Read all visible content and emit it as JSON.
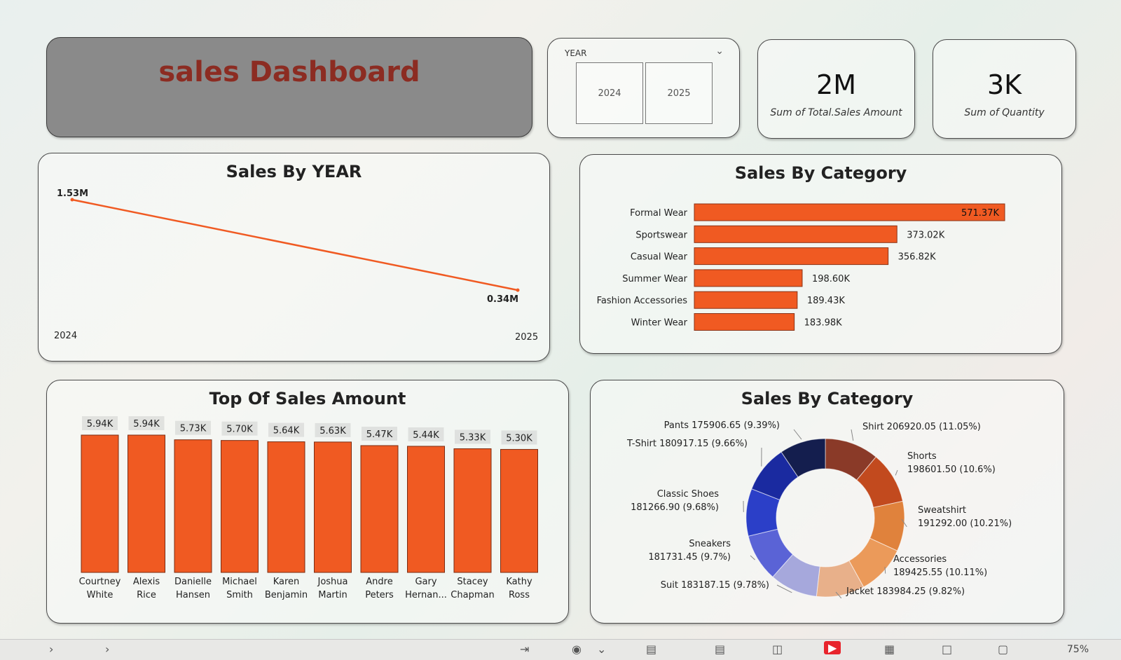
{
  "header": {
    "title": "sales Dashboard"
  },
  "slicer": {
    "label": "YEAR",
    "options": [
      "2024",
      "2025"
    ]
  },
  "kpis": [
    {
      "value": "2M",
      "label": "Sum of Total.Sales Amount"
    },
    {
      "value": "3K",
      "label": "Sum of Quantity"
    }
  ],
  "status": {
    "zoom": "75%"
  },
  "icons": {
    "dropdown": "chevron-down-icon",
    "taskbar": [
      "chevron-right-icon",
      "chevron-right-icon",
      "exit-icon",
      "eye-icon",
      "chevron-down-icon",
      "layout-icon",
      "page-icon",
      "columns-icon",
      "play-icon",
      "grid-icon",
      "fit-icon",
      "full-icon"
    ]
  },
  "colors": {
    "bar": "#f05a22",
    "bar_top": "#b9431a",
    "title_text": "#8c2c22",
    "title_bg": "#8a8a8a"
  },
  "chart_data": [
    {
      "type": "line",
      "title": "Sales By YEAR",
      "x": [
        "2024",
        "2025"
      ],
      "series": [
        {
          "values": [
            1.53,
            0.34
          ]
        }
      ],
      "data_labels": [
        "1.53M",
        "0.34M"
      ]
    },
    {
      "type": "bar",
      "orientation": "horizontal",
      "title": "Sales By Category",
      "categories": [
        "Formal Wear",
        "Sportswear",
        "Casual Wear",
        "Summer Wear",
        "Fashion Accessories",
        "Winter Wear"
      ],
      "values": [
        571370,
        373020,
        356820,
        198600,
        189430,
        183980
      ],
      "data_labels": [
        "571.37K",
        "373.02K",
        "356.82K",
        "198.60K",
        "189.43K",
        "183.98K"
      ]
    },
    {
      "type": "bar",
      "title": "Top Of Sales Amount",
      "categories": [
        "Courtney White",
        "Alexis Rice",
        "Danielle Hansen",
        "Michael Smith",
        "Karen Benjamin",
        "Joshua Martin",
        "Andre Peters",
        "Gary Hernan...",
        "Stacey Chapman",
        "Kathy Ross"
      ],
      "category_lines": [
        [
          "Courtney",
          "White"
        ],
        [
          "Alexis",
          "Rice"
        ],
        [
          "Danielle",
          "Hansen"
        ],
        [
          "Michael",
          "Smith"
        ],
        [
          "Karen",
          "Benjamin"
        ],
        [
          "Joshua",
          "Martin"
        ],
        [
          "Andre",
          "Peters"
        ],
        [
          "Gary",
          "Hernan..."
        ],
        [
          "Stacey",
          "Chapman"
        ],
        [
          "Kathy",
          "Ross"
        ]
      ],
      "values": [
        5940,
        5940,
        5730,
        5700,
        5640,
        5630,
        5470,
        5440,
        5330,
        5300
      ],
      "data_labels": [
        "5.94K",
        "5.94K",
        "5.73K",
        "5.70K",
        "5.64K",
        "5.63K",
        "5.47K",
        "5.44K",
        "5.33K",
        "5.30K"
      ]
    },
    {
      "type": "pie",
      "donut": true,
      "title": "Sales By Category",
      "slices": [
        {
          "label": "Shirt",
          "value": 206920.05,
          "pct": 11.05,
          "color": "#8a3a28",
          "text": [
            "Shirt 206920.05 (11.05%)"
          ]
        },
        {
          "label": "Shorts",
          "value": 198601.5,
          "pct": 10.6,
          "color": "#c24a1e",
          "text": [
            "Shorts",
            "198601.50 (10.6%)"
          ]
        },
        {
          "label": "Sweatshirt",
          "value": 191292.0,
          "pct": 10.21,
          "color": "#e0823c",
          "text": [
            "Sweatshirt",
            "191292.00 (10.21%)"
          ]
        },
        {
          "label": "Accessories",
          "value": 189425.55,
          "pct": 10.11,
          "color": "#eb9a5a",
          "text": [
            "Accessories",
            "189425.55 (10.11%)"
          ]
        },
        {
          "label": "Jacket",
          "value": 183984.25,
          "pct": 9.82,
          "color": "#e8b08a",
          "text": [
            "Jacket 183984.25 (9.82%)"
          ]
        },
        {
          "label": "Suit",
          "value": 183187.15,
          "pct": 9.78,
          "color": "#a6a8dc",
          "text": [
            "Suit 183187.15 (9.78%)"
          ]
        },
        {
          "label": "Sneakers",
          "value": 181731.45,
          "pct": 9.7,
          "color": "#5a63d6",
          "text": [
            "Sneakers",
            "181731.45 (9.7%)"
          ]
        },
        {
          "label": "Classic Shoes",
          "value": 181266.9,
          "pct": 9.68,
          "color": "#2b3fc8",
          "text": [
            "Classic Shoes",
            "181266.90 (9.68%)"
          ]
        },
        {
          "label": "T-Shirt",
          "value": 180917.15,
          "pct": 9.66,
          "color": "#1a2aa0",
          "text": [
            "T-Shirt 180917.15 (9.66%)"
          ]
        },
        {
          "label": "Pants",
          "value": 175906.65,
          "pct": 9.39,
          "color": "#141e4e",
          "text": [
            "Pants 175906.65 (9.39%)"
          ]
        }
      ]
    }
  ]
}
